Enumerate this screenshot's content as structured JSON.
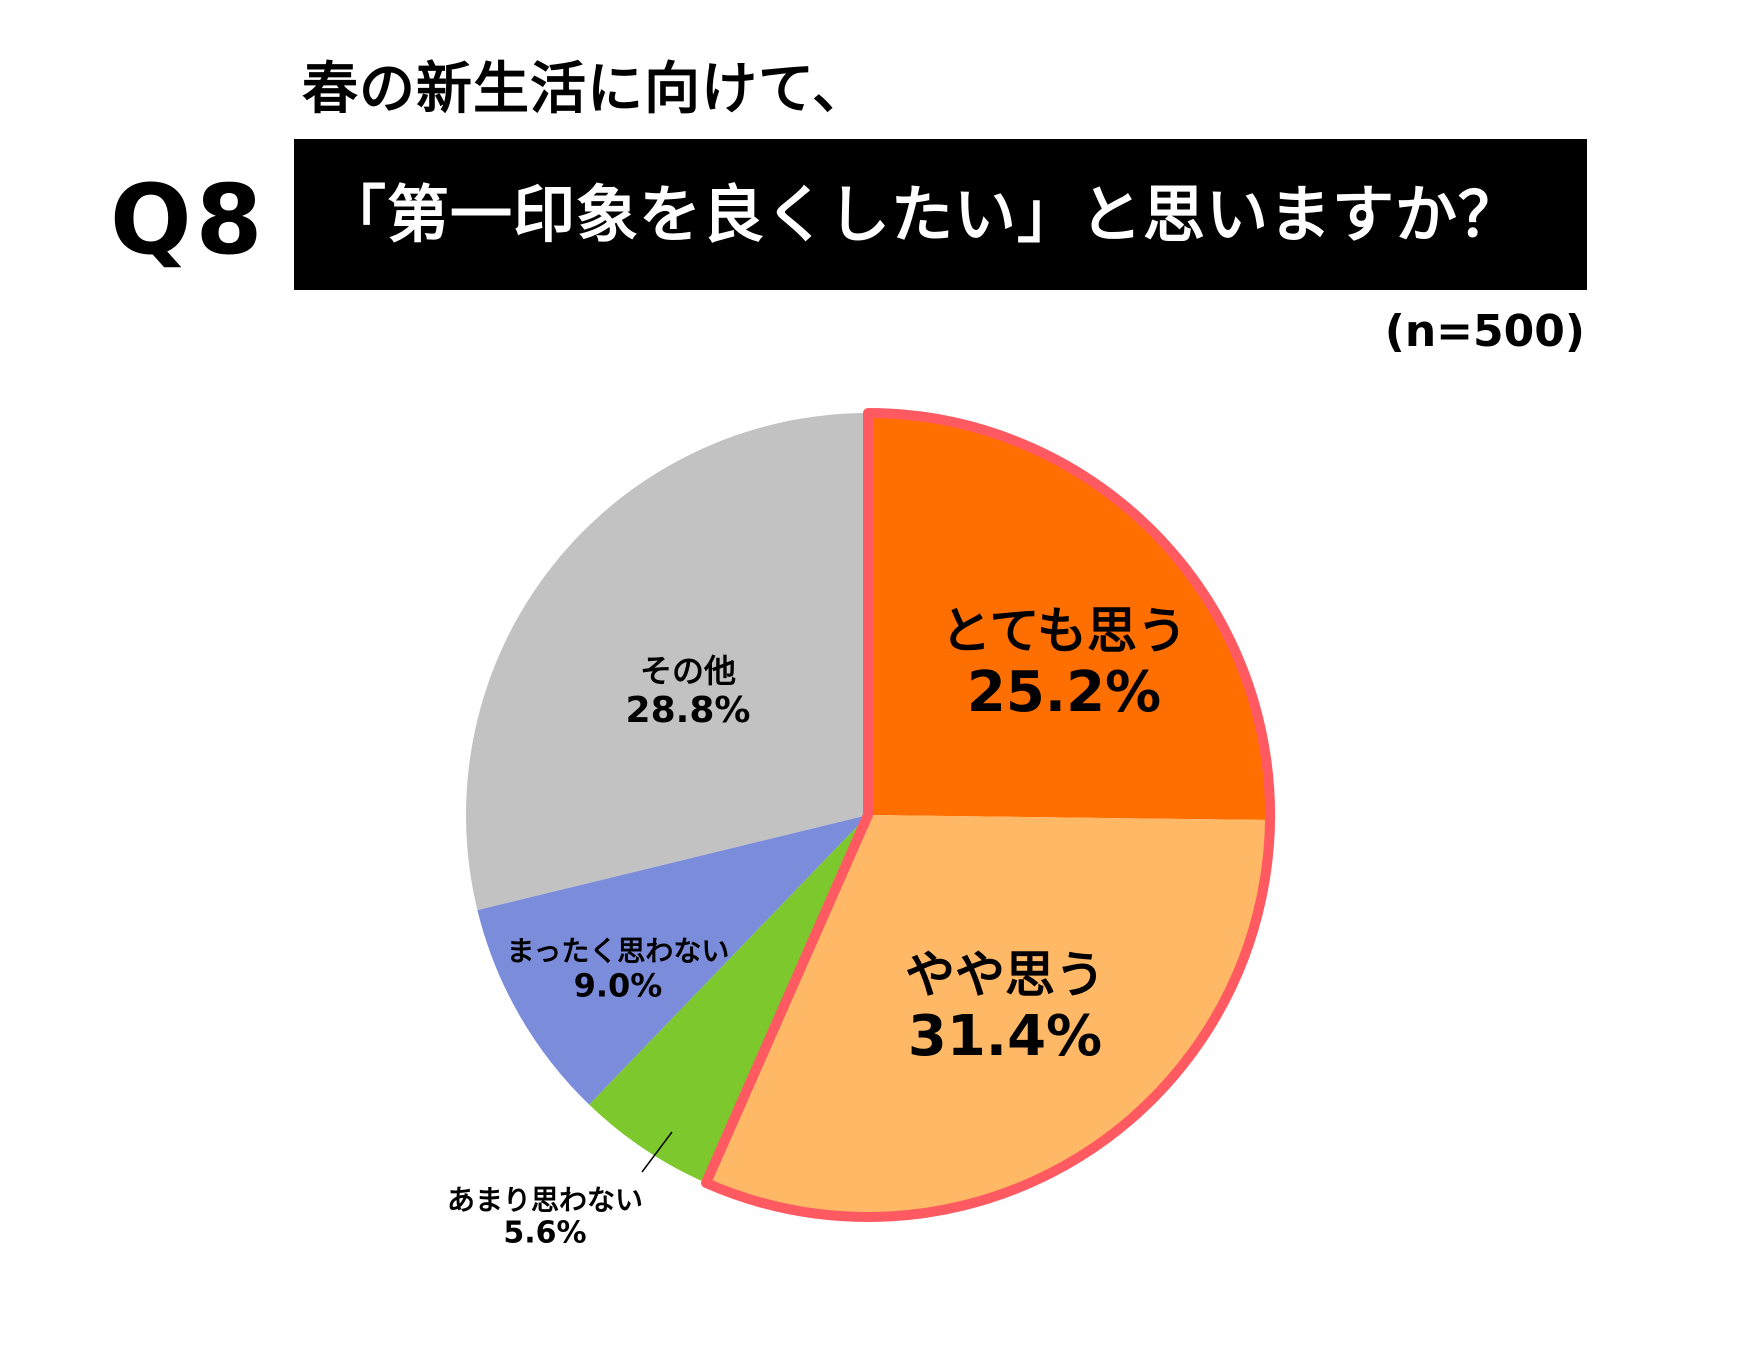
{
  "header": {
    "question_number": "Q8",
    "subtitle": "春の新生活に向けて、",
    "title": "「第一印象を良くしたい」と思いますか？",
    "sample_size": "(n=500)"
  },
  "chart_data": {
    "type": "pie",
    "title": "春の新生活に向けて、「第一印象を良くしたい」と思いますか？",
    "subtitle": "Q8",
    "note": "(n=500)",
    "start_angle": "12 o'clock",
    "direction": "clockwise",
    "categories": [
      "とても思う",
      "やや思う",
      "あまり思わない",
      "まったく思わない",
      "その他"
    ],
    "values": [
      25.2,
      31.4,
      5.6,
      9.0,
      28.8
    ],
    "unit": "%",
    "colors": [
      "#FF6F00",
      "#FFB866",
      "#7DC82D",
      "#7B8CDB",
      "#C2C2C2"
    ],
    "highlighted": [
      "とても思う",
      "やや思う"
    ],
    "highlight_outline_color": "#FF5A62",
    "labels": [
      {
        "name": "とても思う",
        "pct": "25.2%"
      },
      {
        "name": "やや思う",
        "pct": "31.4%"
      },
      {
        "name": "あまり思わない",
        "pct": "5.6%"
      },
      {
        "name": "まったく思わない",
        "pct": "9.0%"
      },
      {
        "name": "その他",
        "pct": "28.8%"
      }
    ]
  }
}
